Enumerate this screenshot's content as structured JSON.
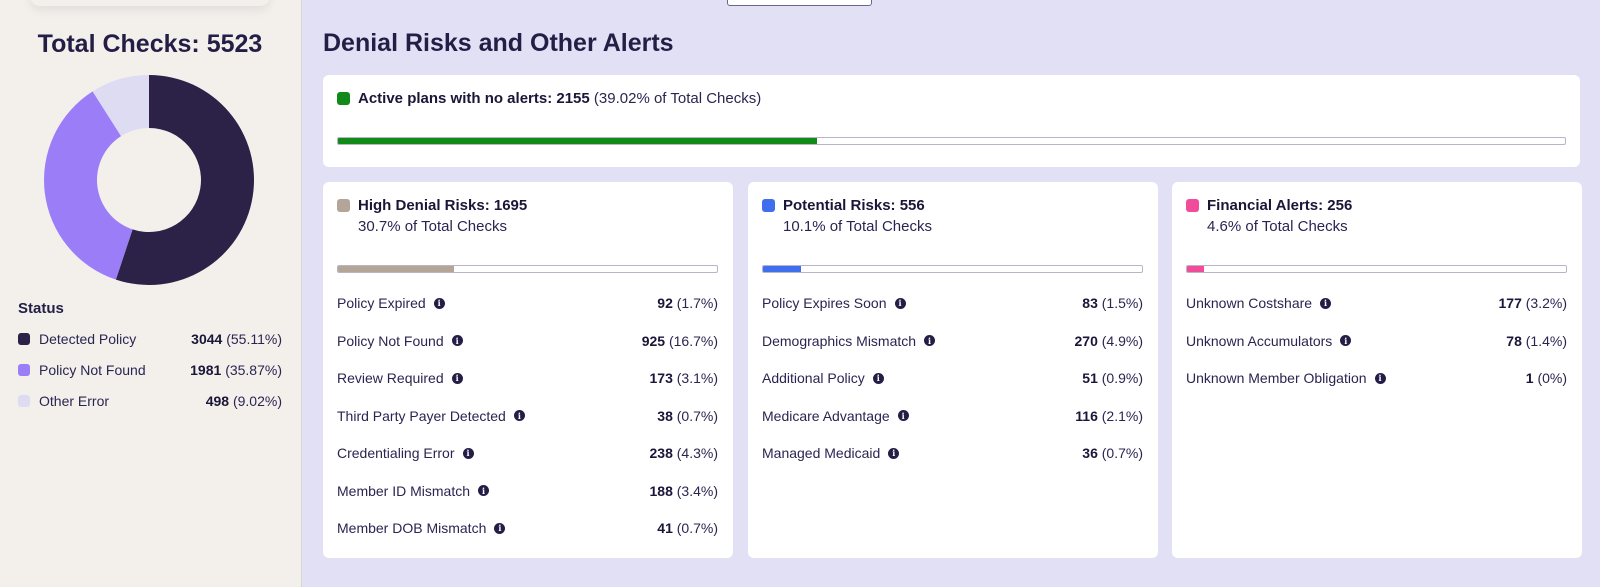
{
  "summary": {
    "total_title": "Total Checks: 5523",
    "status_title": "Status",
    "legend": [
      {
        "label": "Detected Policy",
        "count": "3044",
        "pct": "(55.11%)",
        "color": "#2c2248",
        "fraction": 0.5511
      },
      {
        "label": "Policy Not Found",
        "count": "1981",
        "pct": "(35.87%)",
        "color": "#9b7ef7",
        "fraction": 0.3587
      },
      {
        "label": "Other Error",
        "count": "498",
        "pct": "(9.02%)",
        "color": "#dedcf3",
        "fraction": 0.0902
      }
    ]
  },
  "main": {
    "title": "Denial Risks and Other Alerts",
    "active": {
      "label": "Active plans with no alerts: 2155",
      "pct": "(39.02% of Total Checks)",
      "color": "#118a1a",
      "fraction": 0.3902
    },
    "cards": [
      {
        "title": "High Denial Risks: 1695",
        "subtitle": "30.7% of Total Checks",
        "color": "#b4a599",
        "fraction": 0.307,
        "rows": [
          {
            "label": "Policy Expired",
            "count": "92",
            "pct": "(1.7%)"
          },
          {
            "label": "Policy Not Found",
            "count": "925",
            "pct": "(16.7%)"
          },
          {
            "label": "Review Required",
            "count": "173",
            "pct": "(3.1%)"
          },
          {
            "label": "Third Party Payer Detected",
            "count": "38",
            "pct": "(0.7%)"
          },
          {
            "label": "Credentialing Error",
            "count": "238",
            "pct": "(4.3%)"
          },
          {
            "label": "Member ID Mismatch",
            "count": "188",
            "pct": "(3.4%)"
          },
          {
            "label": "Member DOB Mismatch",
            "count": "41",
            "pct": "(0.7%)"
          }
        ]
      },
      {
        "title": "Potential Risks: 556",
        "subtitle": "10.1% of Total Checks",
        "color": "#3f6fee",
        "fraction": 0.101,
        "rows": [
          {
            "label": "Policy Expires Soon",
            "count": "83",
            "pct": "(1.5%)"
          },
          {
            "label": "Demographics Mismatch",
            "count": "270",
            "pct": "(4.9%)"
          },
          {
            "label": "Additional Policy",
            "count": "51",
            "pct": "(0.9%)"
          },
          {
            "label": "Medicare Advantage",
            "count": "116",
            "pct": "(2.1%)"
          },
          {
            "label": "Managed Medicaid",
            "count": "36",
            "pct": "(0.7%)"
          }
        ]
      },
      {
        "title": "Financial Alerts: 256",
        "subtitle": "4.6% of Total Checks",
        "color": "#f04c9a",
        "fraction": 0.046,
        "rows": [
          {
            "label": "Unknown Costshare",
            "count": "177",
            "pct": "(3.2%)"
          },
          {
            "label": "Unknown Accumulators",
            "count": "78",
            "pct": "(1.4%)"
          },
          {
            "label": "Unknown Member Obligation",
            "count": "1",
            "pct": "(0%)"
          }
        ]
      }
    ]
  }
}
